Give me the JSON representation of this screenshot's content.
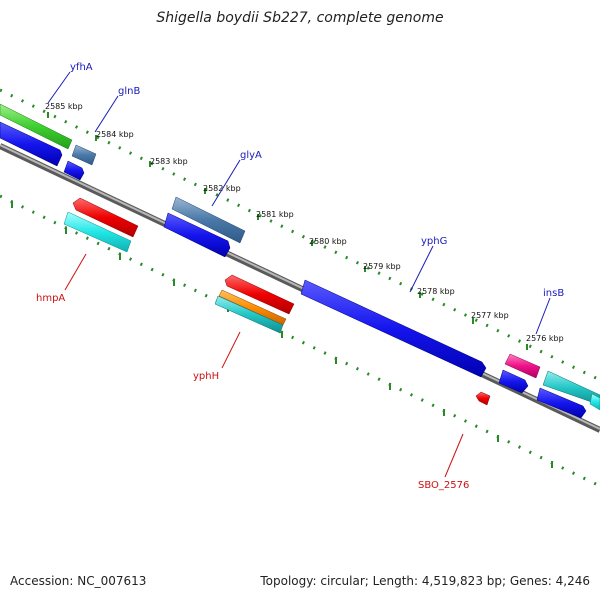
{
  "title": "Shigella boydii Sb227, complete genome",
  "footer": {
    "accession": "Accession: NC_007613",
    "stats": "Topology: circular; Length: 4,519,823 bp; Genes: 4,246"
  },
  "colors": {
    "backbone": "#8c8c8c",
    "tick": "#2a8a2a",
    "fwd_label": "#1a1ab8",
    "rev_label": "#cc1111"
  },
  "scale_labels": [
    "2585 kbp",
    "2584 kbp",
    "2583 kbp",
    "2582 kbp",
    "2581 kbp",
    "2580 kbp",
    "2579 kbp",
    "2578 kbp",
    "2577 kbp",
    "2576 kbp"
  ],
  "gene_labels": {
    "forward": [
      "yfhA",
      "glnB",
      "glyA",
      "yphG",
      "insB"
    ],
    "reverse": [
      "hmpA",
      "yphH",
      "SBO_2576"
    ]
  }
}
